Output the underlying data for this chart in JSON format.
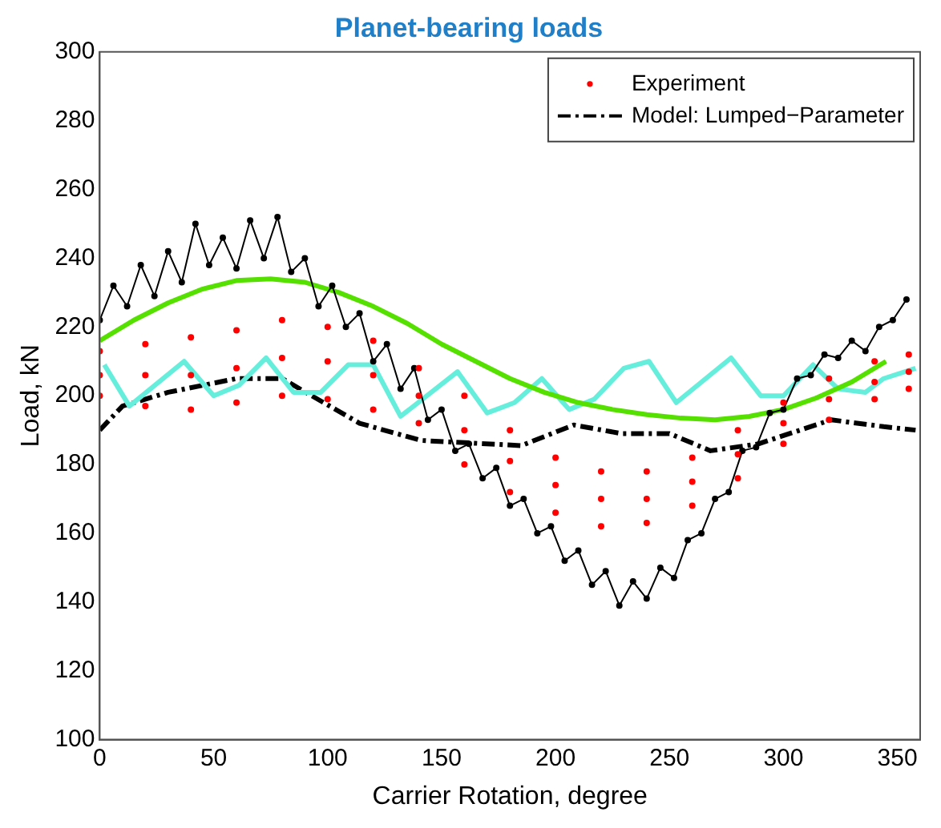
{
  "chart_data": {
    "type": "line",
    "title": "Planet-bearing loads",
    "xlabel": "Carrier Rotation, degree",
    "ylabel": "Load, kN",
    "xlim": [
      0,
      360
    ],
    "xticks": [
      0,
      50,
      100,
      150,
      200,
      250,
      300,
      350
    ],
    "ylim": [
      100,
      300
    ],
    "yticks": [
      100,
      120,
      140,
      160,
      180,
      200,
      220,
      240,
      260,
      280,
      300
    ],
    "grid": false,
    "legend": "top right",
    "series": [
      {
        "name": "Experiment",
        "type": "scatter",
        "color": "#ff0000",
        "marker": "circle",
        "x": [
          0,
          20,
          40,
          60,
          80,
          100,
          120,
          140,
          160,
          180,
          200,
          220,
          240,
          260,
          280,
          300,
          320,
          340,
          355,
          0,
          20,
          40,
          60,
          80,
          100,
          120,
          140,
          160,
          180,
          200,
          220,
          240,
          260,
          280,
          300,
          320,
          340,
          355,
          0,
          20,
          40,
          60,
          80,
          100,
          120,
          140,
          160,
          180,
          200,
          220,
          240,
          260,
          280,
          300,
          320,
          340,
          355
        ],
        "values": [
          213,
          215,
          217,
          219,
          222,
          220,
          216,
          208,
          200,
          190,
          182,
          178,
          178,
          182,
          190,
          198,
          205,
          210,
          212,
          200,
          197,
          196,
          198,
          200,
          199,
          196,
          192,
          180,
          172,
          166,
          162,
          163,
          168,
          176,
          186,
          193,
          199,
          202,
          206,
          206,
          206,
          208,
          211,
          210,
          206,
          200,
          190,
          181,
          174,
          170,
          170,
          175,
          183,
          192,
          199,
          204,
          207
        ]
      },
      {
        "color": "#000000",
        "marker": "circle",
        "line_style": "solid",
        "x": [
          0,
          6,
          12,
          18,
          24,
          30,
          36,
          42,
          48,
          54,
          60,
          66,
          72,
          78,
          84,
          90,
          96,
          102,
          108,
          114,
          120,
          126,
          132,
          138,
          144,
          150,
          156,
          162,
          168,
          174,
          180,
          186,
          192,
          198,
          204,
          210,
          216,
          222,
          228,
          234,
          240,
          246,
          252,
          258,
          264,
          270,
          276,
          282,
          288,
          294,
          300,
          306,
          312,
          318,
          324,
          330,
          336,
          342,
          348,
          354
        ],
        "values": [
          222,
          232,
          226,
          238,
          229,
          242,
          233,
          250,
          238,
          246,
          237,
          251,
          240,
          252,
          236,
          240,
          226,
          232,
          220,
          224,
          210,
          215,
          202,
          208,
          193,
          196,
          184,
          186,
          176,
          179,
          168,
          170,
          160,
          162,
          152,
          155,
          145,
          149,
          139,
          146,
          141,
          150,
          147,
          158,
          160,
          170,
          172,
          184,
          185,
          195,
          196,
          205,
          206,
          212,
          211,
          216,
          213,
          220,
          222,
          228
        ]
      },
      {
        "color": "#55e000",
        "marker": "none",
        "line_style": "solid",
        "x": [
          0,
          15,
          30,
          45,
          60,
          75,
          90,
          105,
          120,
          135,
          150,
          165,
          180,
          195,
          210,
          225,
          240,
          255,
          270,
          285,
          300,
          315,
          330,
          345
        ],
        "values": [
          216,
          222,
          227,
          231,
          233.5,
          234,
          233,
          230,
          226,
          221,
          215,
          210,
          205,
          201,
          198,
          196,
          194.5,
          193.5,
          193,
          194,
          196,
          199.5,
          204,
          210
        ]
      },
      {
        "color": "#66eedd",
        "marker": "none",
        "line_style": "solid",
        "x": [
          2,
          13,
          37,
          50,
          61,
          73,
          85,
          97,
          109,
          120,
          132,
          157,
          170,
          182,
          194,
          206,
          217,
          230,
          241,
          253,
          277,
          290,
          300,
          313,
          324,
          336,
          344,
          358
        ],
        "values": [
          209,
          197,
          210,
          200,
          203,
          211,
          201,
          201,
          209,
          209,
          194,
          207,
          195,
          198,
          205,
          196,
          199,
          208,
          210,
          198,
          211,
          200,
          200,
          209,
          202,
          201,
          205,
          208
        ]
      },
      {
        "name": "Model: Lumped−Parameter",
        "color": "#000000",
        "marker": "none",
        "line_style": "dashed",
        "x": [
          0,
          10,
          30,
          60,
          80,
          93,
          114,
          141,
          185,
          208,
          229,
          250,
          268,
          289,
          321,
          344,
          358
        ],
        "values": [
          190,
          197,
          201,
          205,
          205,
          200,
          192,
          187,
          185.5,
          191.5,
          189,
          189,
          184,
          186,
          193,
          191,
          190
        ]
      }
    ]
  }
}
